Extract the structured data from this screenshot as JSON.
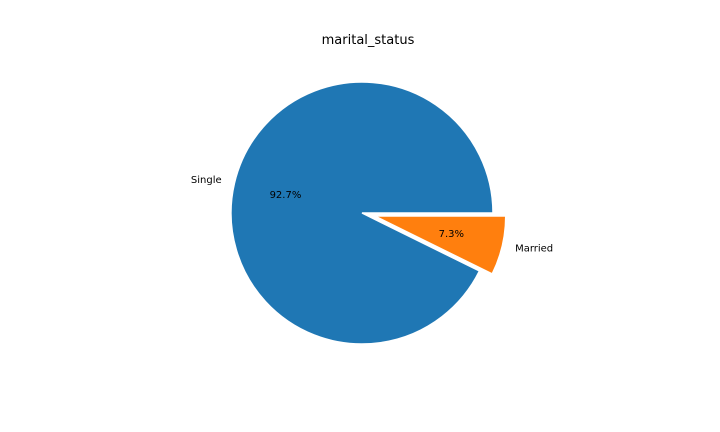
{
  "chart_data": {
    "type": "pie",
    "title": "marital_status",
    "labels": [
      "Single",
      "Married"
    ],
    "values": [
      92.7,
      7.3
    ],
    "percent_labels": [
      "92.7%",
      "7.3%"
    ],
    "explode": [
      0,
      0.1
    ],
    "start_angle": 0,
    "colors": [
      "#1f77b4",
      "#ff7f0e"
    ],
    "legend": "none"
  }
}
